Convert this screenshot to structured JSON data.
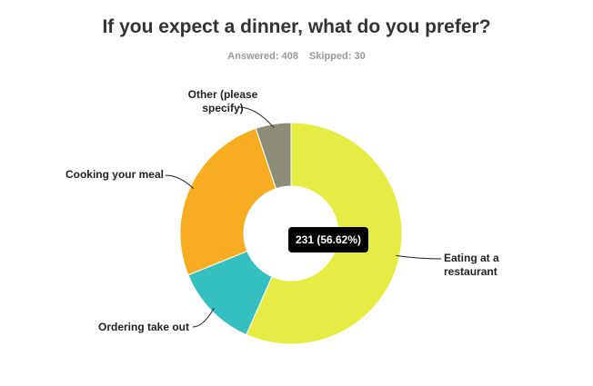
{
  "chart_data": {
    "type": "donut",
    "title": "If you expect a dinner, what do you prefer?",
    "answered": "Answered: 408",
    "skipped": "Skipped: 30",
    "categories": [
      "Eating at a restaurant",
      "Ordering take out",
      "Cooking your meal",
      "Other (please specify)"
    ],
    "values": [
      231,
      50,
      106,
      21
    ],
    "colors": [
      "#e5ec44",
      "#36bfbf",
      "#f7ad1f",
      "#8c8c79"
    ],
    "tooltip": "231 (56.62%)"
  }
}
